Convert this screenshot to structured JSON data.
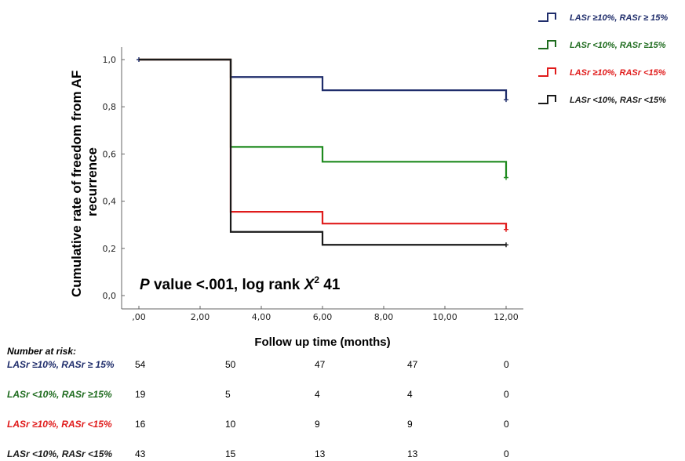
{
  "chart_data": {
    "type": "line",
    "step": true,
    "xlabel": "Follow up time (months)",
    "ylabel_lines": [
      "Cumulative rate of freedom from AF",
      "recurrence"
    ],
    "xlim": [
      0,
      12
    ],
    "ylim": [
      0,
      1
    ],
    "x_ticks": [
      0,
      2,
      4,
      6,
      8,
      10,
      12
    ],
    "x_tick_labels": [
      ",00",
      "2,00",
      "4,00",
      "6,00",
      "8,00",
      "10,00",
      "12,00"
    ],
    "y_ticks": [
      0,
      0.2,
      0.4,
      0.6,
      0.8,
      1.0
    ],
    "y_tick_labels": [
      "0,0",
      "0,2",
      "0,4",
      "0,6",
      "0,8",
      "1,0"
    ],
    "annotation": {
      "prefix": "P",
      "text": " value <.001, log rank ",
      "chi": "X",
      "sup": "2",
      "value": " 41"
    },
    "series": [
      {
        "name": "LASr ≥10%, RASr ≥ 15%",
        "color": "#1f2d6b",
        "steps": [
          [
            0,
            1.0
          ],
          [
            3,
            0.926
          ],
          [
            6,
            0.87
          ],
          [
            12,
            0.83
          ]
        ],
        "censor": [
          [
            0,
            1.0
          ],
          [
            12,
            0.83
          ]
        ]
      },
      {
        "name": "LASr <10%, RASr ≥15%",
        "color": "#1e8a1e",
        "steps": [
          [
            0,
            1.0
          ],
          [
            3,
            0.63
          ],
          [
            6,
            0.567
          ],
          [
            12,
            0.5
          ]
        ],
        "censor": [
          [
            12,
            0.5
          ]
        ]
      },
      {
        "name": "LASr ≥10%, RASr <15%",
        "color": "#e01b1b",
        "steps": [
          [
            0,
            1.0
          ],
          [
            3,
            0.355
          ],
          [
            6,
            0.305
          ],
          [
            12,
            0.28
          ]
        ],
        "censor": [
          [
            12,
            0.28
          ]
        ]
      },
      {
        "name": "LASr <10%, RASr <15%",
        "color": "#1a1a1a",
        "steps": [
          [
            0,
            1.0
          ],
          [
            3,
            0.27
          ],
          [
            6,
            0.215
          ],
          [
            12,
            0.215
          ]
        ],
        "censor": [
          [
            12,
            0.215
          ]
        ]
      }
    ]
  },
  "risk_table": {
    "title": "Number at risk:",
    "time_points": [
      0,
      3,
      6,
      8,
      12
    ],
    "rows": [
      {
        "label": "LASr ≥10%, RASr ≥ 15%",
        "color": "#1f2d6b",
        "values": [
          "54",
          "50",
          "47",
          "47",
          "0"
        ]
      },
      {
        "label": "LASr <10%, RASr ≥15%",
        "color": "#1e6b1e",
        "values": [
          "19",
          "5",
          "4",
          "4",
          "0"
        ]
      },
      {
        "label": "LASr ≥10%, RASr <15%",
        "color": "#e01b1b",
        "values": [
          "16",
          "10",
          "9",
          "9",
          "0"
        ]
      },
      {
        "label": "LASr <10%, RASr <15%",
        "color": "#1a1a1a",
        "values": [
          "43",
          "15",
          "13",
          "13",
          "0"
        ]
      }
    ]
  },
  "legend": {
    "placement": "top-right",
    "items": [
      {
        "label": "LASr ≥10%, RASr ≥ 15%",
        "color": "#1f2d6b"
      },
      {
        "label": "LASr <10%, RASr ≥15%",
        "color": "#1e6b1e"
      },
      {
        "label": "LASr ≥10%, RASr <15%",
        "color": "#e01b1b"
      },
      {
        "label": "LASr <10%, RASr <15%",
        "color": "#1a1a1a"
      }
    ]
  }
}
